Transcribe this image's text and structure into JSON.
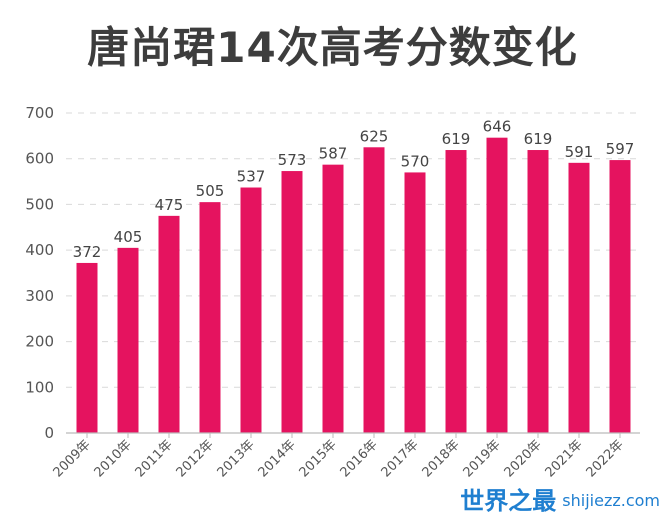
{
  "chart_data": {
    "type": "bar",
    "title": "唐尚珺14次高考分数变化",
    "xlabel": "",
    "ylabel": "",
    "ylim": [
      0,
      700
    ],
    "yticks": [
      0,
      100,
      200,
      300,
      400,
      500,
      600,
      700
    ],
    "grid": true,
    "legend": "none",
    "categories": [
      "2009年",
      "2010年",
      "2011年",
      "2012年",
      "2013年",
      "2014年",
      "2015年",
      "2016年",
      "2017年",
      "2018年",
      "2019年",
      "2020年",
      "2021年",
      "2022年"
    ],
    "values": [
      372,
      405,
      475,
      505,
      537,
      573,
      587,
      625,
      570,
      619,
      646,
      619,
      591,
      597
    ],
    "bar_color": "#e5135f",
    "data_labels": true
  },
  "watermark": {
    "cn": "世界之最",
    "en": "shijiezz.com",
    "color": "#1f7fd0"
  }
}
